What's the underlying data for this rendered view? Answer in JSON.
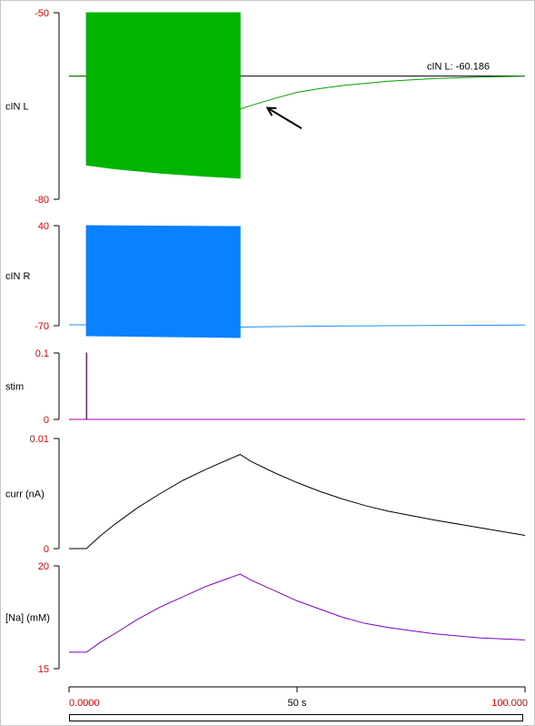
{
  "chart_data": {
    "type": "line",
    "x_axis": {
      "range": [
        0,
        100
      ],
      "tick_labels": [
        "0.0000",
        "50 s",
        "100.000"
      ]
    },
    "panels": [
      {
        "id": "cinl",
        "label": "cIN L",
        "ylim": [
          -80,
          -50
        ],
        "ytick_labels": [
          "-50",
          "-80"
        ],
        "readout": "cIN L: -60.186",
        "series": [
          {
            "color": "#000000",
            "kind": "flat",
            "value": -60.186
          },
          {
            "color": "#00a000",
            "kind": "trace",
            "points": [
              [
                0,
                -60.2
              ],
              [
                3.8,
                -60.2
              ],
              [
                37.5,
                -65.5
              ],
              [
                40,
                -64.9
              ],
              [
                45,
                -63.8
              ],
              [
                50,
                -62.8
              ],
              [
                55,
                -62.2
              ],
              [
                60,
                -61.7
              ],
              [
                70,
                -61.0
              ],
              [
                80,
                -60.6
              ],
              [
                90,
                -60.35
              ],
              [
                100,
                -60.2
              ]
            ]
          },
          {
            "color": "#00b400",
            "kind": "band",
            "from": 3.8,
            "to": 37.5,
            "top": [
              [
                3.8,
                -50
              ],
              [
                37.5,
                -50
              ]
            ],
            "bottom": [
              [
                3.8,
                -74.5
              ],
              [
                10,
                -75.1
              ],
              [
                20,
                -75.8
              ],
              [
                30,
                -76.3
              ],
              [
                37.5,
                -76.6
              ]
            ]
          }
        ],
        "annotation": {
          "type": "arrow",
          "from": [
            51,
            -68.6
          ],
          "to": [
            43.5,
            -65.3
          ]
        }
      },
      {
        "id": "cinr",
        "label": "cIN R",
        "ylim": [
          -70,
          40
        ],
        "ytick_labels": [
          "40",
          "-70"
        ],
        "series": [
          {
            "color": "#1e8cf0",
            "kind": "trace",
            "points": [
              [
                0,
                -69
              ],
              [
                3.8,
                -69
              ],
              [
                37.5,
                -71.5
              ],
              [
                45,
                -71.0
              ],
              [
                60,
                -70.3
              ],
              [
                80,
                -69.7
              ],
              [
                100,
                -69.3
              ]
            ]
          },
          {
            "color": "#0a82ff",
            "kind": "band",
            "from": 3.8,
            "to": 37.5,
            "top": [
              [
                3.8,
                40
              ],
              [
                37.5,
                39
              ]
            ],
            "bottom": [
              [
                3.8,
                -81
              ],
              [
                37.5,
                -83
              ]
            ]
          }
        ]
      },
      {
        "id": "stim",
        "label": "stim",
        "ylim": [
          -0.012,
          0.1
        ],
        "ytick_labels": [
          "0.1",
          "0"
        ],
        "series": [
          {
            "color": "#a000a0",
            "kind": "trace",
            "points": [
              [
                0,
                -0.012
              ],
              [
                3.8,
                -0.012
              ],
              [
                3.8,
                0.1
              ],
              [
                3.9,
                0.1
              ],
              [
                3.9,
                -0.012
              ],
              [
                100,
                -0.012
              ]
            ]
          }
        ]
      },
      {
        "id": "curr",
        "label": "curr (nA)",
        "ylim": [
          0,
          0.01
        ],
        "ytick_labels": [
          "0.01",
          "0"
        ],
        "series": [
          {
            "color": "#000000",
            "kind": "trace",
            "points": [
              [
                0,
                0
              ],
              [
                3.8,
                0
              ],
              [
                7,
                0.0012
              ],
              [
                10,
                0.0022
              ],
              [
                15,
                0.0037
              ],
              [
                20,
                0.005
              ],
              [
                25,
                0.0062
              ],
              [
                30,
                0.0072
              ],
              [
                35,
                0.0081
              ],
              [
                37.5,
                0.00855
              ],
              [
                40,
                0.0079
              ],
              [
                45,
                0.0069
              ],
              [
                50,
                0.006
              ],
              [
                55,
                0.0052
              ],
              [
                60,
                0.0045
              ],
              [
                65,
                0.0039
              ],
              [
                70,
                0.0034
              ],
              [
                80,
                0.0026
              ],
              [
                90,
                0.0019
              ],
              [
                100,
                0.0012
              ]
            ]
          }
        ]
      },
      {
        "id": "na",
        "label": "[Na] (mM)",
        "ylim": [
          15,
          20
        ],
        "ytick_labels": [
          "20",
          "15"
        ],
        "series": [
          {
            "color": "#8000c8",
            "kind": "trace",
            "points": [
              [
                0,
                15.8
              ],
              [
                3.8,
                15.8
              ],
              [
                7,
                16.3
              ],
              [
                10,
                16.7
              ],
              [
                15,
                17.4
              ],
              [
                20,
                18.0
              ],
              [
                25,
                18.5
              ],
              [
                30,
                19.0
              ],
              [
                35,
                19.4
              ],
              [
                37.5,
                19.6
              ],
              [
                40,
                19.3
              ],
              [
                45,
                18.8
              ],
              [
                50,
                18.3
              ],
              [
                55,
                17.9
              ],
              [
                60,
                17.5
              ],
              [
                65,
                17.2
              ],
              [
                70,
                17.0
              ],
              [
                80,
                16.7
              ],
              [
                90,
                16.5
              ],
              [
                100,
                16.4
              ]
            ]
          }
        ]
      }
    ]
  }
}
